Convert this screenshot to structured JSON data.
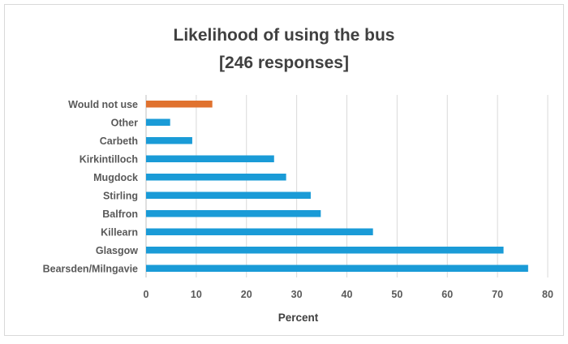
{
  "chart_data": {
    "type": "bar",
    "orientation": "horizontal",
    "title": "Likelihood of using the bus",
    "subtitle": "[246 responses]",
    "xlabel": "Percent",
    "ylabel": "",
    "xlim": [
      0,
      80
    ],
    "x_ticks": [
      0,
      10,
      20,
      30,
      40,
      50,
      60,
      70,
      80
    ],
    "grid": "vertical",
    "legend": "none",
    "categories": [
      "Would not use",
      "Other",
      "Carbeth",
      "Kirkintilloch",
      "Mugdock",
      "Stirling",
      "Balfron",
      "Killearn",
      "Glasgow",
      "Bearsden/Milngavie"
    ],
    "values": [
      13.2,
      4.8,
      9.2,
      25.5,
      27.9,
      32.8,
      34.8,
      45.2,
      71.2,
      76.1
    ],
    "colors": [
      "#e0722f",
      "#1a9bd7",
      "#1a9bd7",
      "#1a9bd7",
      "#1a9bd7",
      "#1a9bd7",
      "#1a9bd7",
      "#1a9bd7",
      "#1a9bd7",
      "#1a9bd7"
    ]
  }
}
